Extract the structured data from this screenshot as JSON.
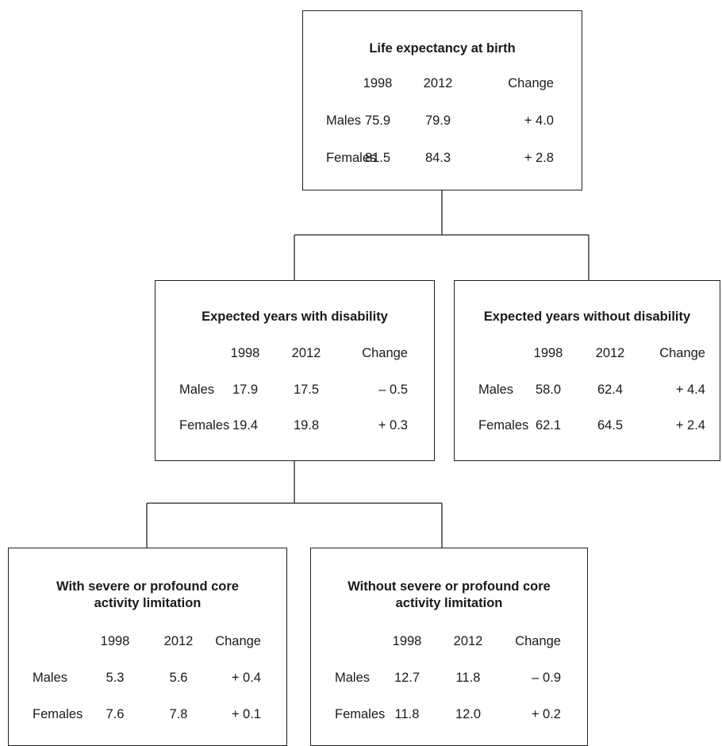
{
  "boxes": {
    "life": {
      "title": "Life expectancy at birth",
      "headers": [
        "1998",
        "2012",
        "Change"
      ],
      "rows": [
        {
          "label": "Males",
          "y1998": "75.9",
          "y2012": "79.9",
          "change": "+ 4.0"
        },
        {
          "label": "Females",
          "y1998": "81.5",
          "y2012": "84.3",
          "change": "+ 2.8"
        }
      ]
    },
    "with_dis": {
      "title": "Expected years with disability",
      "headers": [
        "1998",
        "2012",
        "Change"
      ],
      "rows": [
        {
          "label": "Males",
          "y1998": "17.9",
          "y2012": "17.5",
          "change": "– 0.5"
        },
        {
          "label": "Females",
          "y1998": "19.4",
          "y2012": "19.8",
          "change": "+ 0.3"
        }
      ]
    },
    "without_dis": {
      "title": "Expected years without disability",
      "headers": [
        "1998",
        "2012",
        "Change"
      ],
      "rows": [
        {
          "label": "Males",
          "y1998": "58.0",
          "y2012": "62.4",
          "change": "+ 4.4"
        },
        {
          "label": "Females",
          "y1998": "62.1",
          "y2012": "64.5",
          "change": "+ 2.4"
        }
      ]
    },
    "severe": {
      "title_line1": "With severe or profound core",
      "title_line2": "activity limitation",
      "headers": [
        "1998",
        "2012",
        "Change"
      ],
      "rows": [
        {
          "label": "Males",
          "y1998": "5.3",
          "y2012": "5.6",
          "change": "+ 0.4"
        },
        {
          "label": "Females",
          "y1998": "7.6",
          "y2012": "7.8",
          "change": "+ 0.1"
        }
      ]
    },
    "no_severe": {
      "title_line1": "Without severe or profound core",
      "title_line2": "activity limitation",
      "headers": [
        "1998",
        "2012",
        "Change"
      ],
      "rows": [
        {
          "label": "Males",
          "y1998": "12.7",
          "y2012": "11.8",
          "change": "– 0.9"
        },
        {
          "label": "Females",
          "y1998": "11.8",
          "y2012": "12.0",
          "change": "+ 0.2"
        }
      ]
    }
  }
}
